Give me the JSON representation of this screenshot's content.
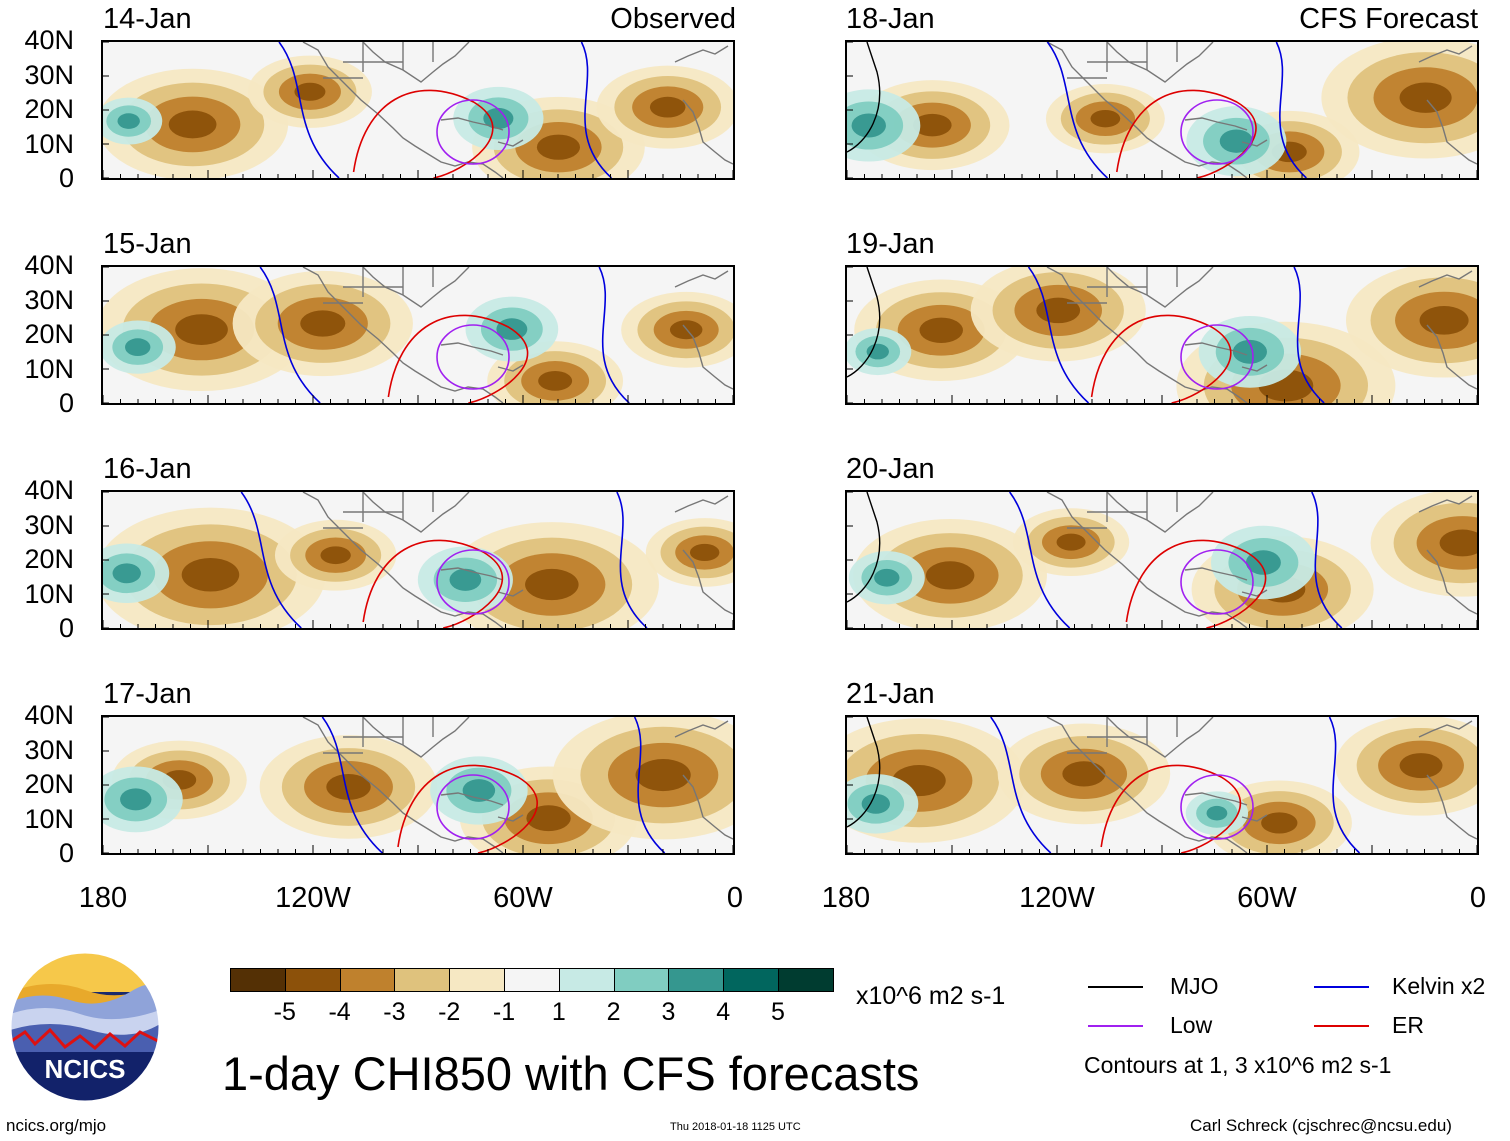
{
  "observed_label": "Observed",
  "forecast_label": "CFS Forecast",
  "panels": [
    {
      "date": "14-Jan",
      "column": "observed"
    },
    {
      "date": "15-Jan",
      "column": "observed"
    },
    {
      "date": "16-Jan",
      "column": "observed"
    },
    {
      "date": "17-Jan",
      "column": "observed"
    },
    {
      "date": "18-Jan",
      "column": "forecast"
    },
    {
      "date": "19-Jan",
      "column": "forecast"
    },
    {
      "date": "20-Jan",
      "column": "forecast"
    },
    {
      "date": "21-Jan",
      "column": "forecast"
    }
  ],
  "y_axis_labels": [
    "40N",
    "30N",
    "20N",
    "10N",
    "0"
  ],
  "x_axis_labels": [
    "180",
    "120W",
    "60W",
    "0"
  ],
  "colorbar": {
    "levels": [
      "-5",
      "-4",
      "-3",
      "-2",
      "-1",
      "1",
      "2",
      "3",
      "4",
      "5"
    ],
    "colors": [
      "#543005",
      "#8c510a",
      "#bf812d",
      "#dfc27d",
      "#f6e8c3",
      "#f5f5f5",
      "#c7eae5",
      "#80cdc1",
      "#35978f",
      "#01665e",
      "#003c30"
    ],
    "units": "x10^6 m2 s-1"
  },
  "title": "1-day CHI850 with CFS forecasts",
  "legend": {
    "items": [
      {
        "label": "MJO",
        "color": "#000000"
      },
      {
        "label": "Kelvin x2",
        "color": "#0000dd"
      },
      {
        "label": "Low",
        "color": "#a020f0"
      },
      {
        "label": "ER",
        "color": "#dd0000"
      }
    ],
    "note": "Contours at 1, 3 x10^6 m2 s-1"
  },
  "logo_text": "NCICS",
  "footer": {
    "website": "ncics.org/mjo",
    "timestamp": "Thu 2018-01-18 1125 UTC",
    "author": "Carl Schreck (cjschrec@ncsu.edu)"
  }
}
